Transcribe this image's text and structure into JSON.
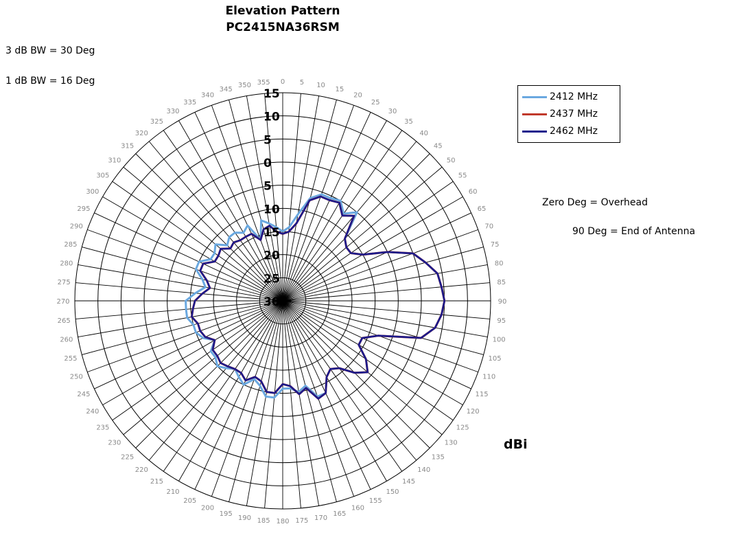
{
  "chart_data": {
    "type": "polar-line",
    "title": "Elevation Pattern",
    "subtitle": "PC2415NA36RSM",
    "annotations": [
      "3 dB BW = 30 Deg",
      "1 dB BW = 16 Deg",
      "Zero Deg = Overhead",
      "90 Deg = End of Antenna"
    ],
    "unit_label": "dBi",
    "angle_ticks": [
      0,
      5,
      10,
      15,
      20,
      25,
      30,
      35,
      40,
      45,
      50,
      55,
      60,
      65,
      70,
      75,
      80,
      85,
      90,
      95,
      100,
      105,
      110,
      115,
      120,
      125,
      130,
      135,
      140,
      145,
      150,
      155,
      160,
      165,
      170,
      175,
      180,
      185,
      190,
      195,
      200,
      205,
      210,
      215,
      220,
      225,
      230,
      235,
      240,
      245,
      250,
      255,
      260,
      265,
      270,
      275,
      280,
      285,
      290,
      295,
      300,
      305,
      310,
      315,
      320,
      325,
      330,
      335,
      340,
      345,
      350,
      355
    ],
    "radial_range": [
      -30,
      15
    ],
    "radial_ticks": [
      15,
      10,
      5,
      0,
      -5,
      -10,
      -15,
      -20,
      -25,
      -30
    ],
    "radial_tick_labels": [
      "15",
      "10",
      "5",
      "0",
      "5",
      "10",
      "15",
      "20",
      "25",
      "30"
    ],
    "legend_position": "top-right",
    "series": [
      {
        "name": "2412 MHz",
        "color": "#6aa8e0",
        "angles": [
          0,
          5,
          10,
          15,
          20,
          25,
          30,
          35,
          40,
          45,
          50,
          55,
          60,
          65,
          70,
          75,
          80,
          85,
          90,
          95,
          100,
          105,
          110,
          115,
          120,
          125,
          130,
          135,
          140,
          145,
          150,
          155,
          160,
          165,
          170,
          175,
          180,
          185,
          190,
          195,
          200,
          205,
          210,
          215,
          220,
          225,
          230,
          235,
          240,
          245,
          250,
          255,
          260,
          265,
          270,
          275,
          280,
          285,
          290,
          295,
          300,
          305,
          310,
          315,
          320,
          325,
          330,
          335,
          340,
          345,
          350,
          355
        ],
        "values": [
          -15,
          -14,
          -11,
          -7,
          -5.5,
          -5.5,
          -5,
          -7,
          -5,
          -11,
          -12,
          -12,
          -10,
          -5,
          0,
          2,
          4,
          4.5,
          5,
          4.5,
          3.5,
          1,
          -8,
          -11,
          -11,
          -8,
          -6,
          -8,
          -11,
          -12,
          -11,
          -8,
          -8,
          -11,
          -10,
          -11,
          -11,
          -9,
          -9,
          -11,
          -12,
          -10,
          -11,
          -12,
          -11,
          -10,
          -11,
          -11,
          -13,
          -11,
          -10,
          -10,
          -9,
          -9,
          -9,
          -11,
          -13,
          -12,
          -10,
          -10,
          -12,
          -12,
          -11,
          -13,
          -12,
          -12,
          -13,
          -12,
          -16,
          -12,
          -13,
          -14
        ]
      },
      {
        "name": "2437 MHz",
        "color": "#c0392b",
        "angles": [
          0,
          5,
          10,
          15,
          20,
          25,
          30,
          35,
          40,
          45,
          50,
          55,
          60,
          65,
          70,
          75,
          80,
          85,
          90,
          95,
          100,
          105,
          110,
          115,
          120,
          125,
          130,
          135,
          140,
          145,
          150,
          155,
          160,
          165,
          170,
          175,
          180,
          185,
          190,
          195,
          200,
          205,
          210,
          215,
          220,
          225,
          230,
          235,
          240,
          245,
          250,
          255,
          260,
          265,
          270,
          275,
          280,
          285,
          290,
          295,
          300,
          305,
          310,
          315,
          320,
          325,
          330,
          335,
          340,
          345,
          350,
          355
        ],
        "values": [
          -15.5,
          -15,
          -13,
          -7.5,
          -6,
          -6,
          -5.5,
          -7.5,
          -6,
          -11,
          -12,
          -12,
          -10,
          -5,
          0,
          2,
          4,
          4.5,
          5,
          4.5,
          3.5,
          1,
          -8,
          -11,
          -11,
          -8,
          -6,
          -8,
          -11,
          -12,
          -11,
          -8,
          -7.5,
          -10.5,
          -9.5,
          -11.5,
          -12,
          -10,
          -10,
          -12,
          -12.5,
          -11,
          -12,
          -12,
          -11.5,
          -11,
          -11.5,
          -11.5,
          -13,
          -11.5,
          -11,
          -11,
          -10,
          -10.5,
          -11,
          -12.5,
          -14,
          -13,
          -11,
          -11,
          -13,
          -13,
          -12.5,
          -14,
          -13.5,
          -14,
          -14,
          -14,
          -16,
          -14,
          -13.5,
          -15
        ]
      },
      {
        "name": "2462 MHz",
        "color": "#1a1a8c",
        "angles": [
          0,
          5,
          10,
          15,
          20,
          25,
          30,
          35,
          40,
          45,
          50,
          55,
          60,
          65,
          70,
          75,
          80,
          85,
          90,
          95,
          100,
          105,
          110,
          115,
          120,
          125,
          130,
          135,
          140,
          145,
          150,
          155,
          160,
          165,
          170,
          175,
          180,
          185,
          190,
          195,
          200,
          205,
          210,
          215,
          220,
          225,
          230,
          235,
          240,
          245,
          250,
          255,
          260,
          265,
          270,
          275,
          280,
          285,
          290,
          295,
          300,
          305,
          310,
          315,
          320,
          325,
          330,
          335,
          340,
          345,
          350,
          355
        ],
        "values": [
          -15.5,
          -15,
          -13,
          -7.5,
          -6,
          -6,
          -5.5,
          -7.5,
          -6,
          -11,
          -12,
          -12,
          -10,
          -5,
          0,
          2,
          4,
          4.5,
          5,
          4.5,
          3.5,
          1,
          -8,
          -11,
          -11,
          -8,
          -6,
          -8,
          -11,
          -12,
          -11,
          -8,
          -7.5,
          -10.5,
          -9.5,
          -11.5,
          -12,
          -10,
          -10,
          -12,
          -12.5,
          -11,
          -12,
          -12,
          -11.5,
          -11,
          -11.5,
          -11.5,
          -13,
          -11.5,
          -11,
          -11,
          -10,
          -10.5,
          -11,
          -12.5,
          -14,
          -13,
          -11,
          -11,
          -13,
          -13,
          -12.5,
          -14,
          -13.5,
          -14,
          -14,
          -14,
          -16,
          -14,
          -13.5,
          -15
        ]
      }
    ]
  }
}
